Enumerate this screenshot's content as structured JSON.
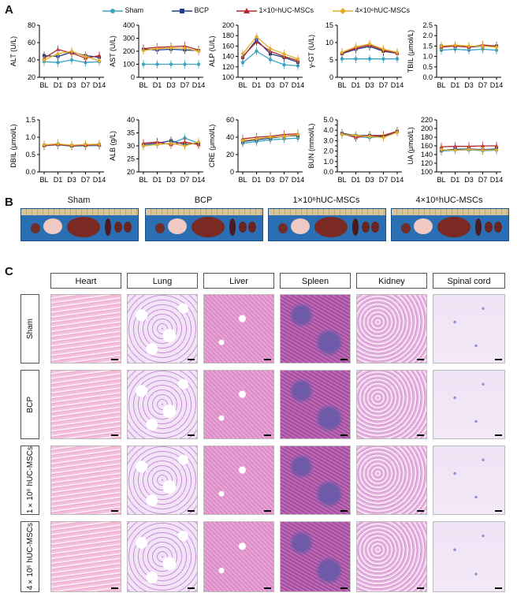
{
  "panels": {
    "a": "A",
    "b": "B",
    "c": "C"
  },
  "legend": [
    {
      "label": "Sham",
      "color": "#3aa6c4",
      "marker": "circle"
    },
    {
      "label": "BCP",
      "color": "#1f3f88",
      "marker": "square"
    },
    {
      "label": "1×10⁶hUC-MSCs",
      "color": "#b3282d",
      "marker": "triangle"
    },
    {
      "label": "4×10⁶hUC-MSCs",
      "color": "#e3ad2b",
      "marker": "diamond"
    }
  ],
  "chart_data": [
    {
      "type": "line",
      "ylabel": "ALT (U/L)",
      "ylim": [
        20,
        80
      ],
      "yticks": [
        "20",
        "40",
        "60",
        "80"
      ],
      "categories": [
        "BL",
        "D1",
        "D3",
        "D7",
        "D14"
      ],
      "series": [
        {
          "name": "Sham",
          "values": [
            38,
            37,
            40,
            37,
            38
          ]
        },
        {
          "name": "BCP",
          "values": [
            45,
            44,
            49,
            45,
            43
          ]
        },
        {
          "name": "1×10⁶hUC-MSCs",
          "values": [
            42,
            52,
            48,
            42,
            45
          ]
        },
        {
          "name": "4×10⁶hUC-MSCs",
          "values": [
            40,
            47,
            50,
            44,
            39
          ]
        }
      ]
    },
    {
      "type": "line",
      "ylabel": "AST (U/L)",
      "ylim": [
        0,
        400
      ],
      "yticks": [
        "0",
        "100",
        "200",
        "300",
        "400"
      ],
      "categories": [
        "BL",
        "D1",
        "D3",
        "D7",
        "D14"
      ],
      "series": [
        {
          "name": "Sham",
          "values": [
            100,
            100,
            100,
            100,
            100
          ]
        },
        {
          "name": "BCP",
          "values": [
            215,
            210,
            215,
            210,
            205
          ]
        },
        {
          "name": "1×10⁶hUC-MSCs",
          "values": [
            220,
            230,
            235,
            240,
            210
          ]
        },
        {
          "name": "4×10⁶hUC-MSCs",
          "values": [
            205,
            220,
            225,
            225,
            200
          ]
        }
      ]
    },
    {
      "type": "line",
      "ylabel": "ALP (U/L)",
      "ylim": [
        100,
        200
      ],
      "yticks": [
        "100",
        "120",
        "140",
        "160",
        "180",
        "200"
      ],
      "categories": [
        "BL",
        "D1",
        "D3",
        "D7",
        "D14"
      ],
      "series": [
        {
          "name": "Sham",
          "values": [
            128,
            150,
            134,
            124,
            122
          ]
        },
        {
          "name": "BCP",
          "values": [
            138,
            172,
            145,
            138,
            129
          ]
        },
        {
          "name": "1×10⁶hUC-MSCs",
          "values": [
            140,
            168,
            150,
            140,
            132
          ]
        },
        {
          "name": "4×10⁶hUC-MSCs",
          "values": [
            145,
            178,
            155,
            145,
            135
          ]
        }
      ]
    },
    {
      "type": "line",
      "ylabel": "γ-GT (U/L)",
      "ylim": [
        0,
        15
      ],
      "yticks": [
        "0",
        "5",
        "10",
        "15"
      ],
      "categories": [
        "BL",
        "D1",
        "D3",
        "D7",
        "D14"
      ],
      "series": [
        {
          "name": "Sham",
          "values": [
            5.3,
            5.3,
            5.3,
            5.3,
            5.3
          ]
        },
        {
          "name": "BCP",
          "values": [
            6.8,
            8.1,
            8.9,
            7.5,
            6.9
          ]
        },
        {
          "name": "1×10⁶hUC-MSCs",
          "values": [
            7.0,
            8.4,
            9.3,
            7.8,
            7.0
          ]
        },
        {
          "name": "4×10⁶hUC-MSCs",
          "values": [
            7.2,
            8.8,
            9.6,
            8.1,
            7.2
          ]
        }
      ]
    },
    {
      "type": "line",
      "ylabel": "TBIL (μmol/L)",
      "ylim": [
        0,
        2.5
      ],
      "yticks": [
        "0.0",
        "0.5",
        "1.0",
        "1.5",
        "2.0",
        "2.5"
      ],
      "categories": [
        "BL",
        "D1",
        "D3",
        "D7",
        "D14"
      ],
      "series": [
        {
          "name": "Sham",
          "values": [
            1.3,
            1.35,
            1.3,
            1.35,
            1.3
          ]
        },
        {
          "name": "BCP",
          "values": [
            1.5,
            1.5,
            1.45,
            1.5,
            1.5
          ]
        },
        {
          "name": "1×10⁶hUC-MSCs",
          "values": [
            1.45,
            1.5,
            1.45,
            1.55,
            1.5
          ]
        },
        {
          "name": "4×10⁶hUC-MSCs",
          "values": [
            1.5,
            1.55,
            1.5,
            1.5,
            1.45
          ]
        }
      ]
    },
    {
      "type": "line",
      "ylabel": "DBIL (μmol/L)",
      "ylim": [
        0,
        1.5
      ],
      "yticks": [
        "0.0",
        "0.5",
        "1.0",
        "1.5"
      ],
      "categories": [
        "BL",
        "D1",
        "D3",
        "D7",
        "D14"
      ],
      "series": [
        {
          "name": "Sham",
          "values": [
            0.75,
            0.78,
            0.74,
            0.75,
            0.76
          ]
        },
        {
          "name": "BCP",
          "values": [
            0.77,
            0.8,
            0.76,
            0.78,
            0.79
          ]
        },
        {
          "name": "1×10⁶hUC-MSCs",
          "values": [
            0.76,
            0.79,
            0.75,
            0.77,
            0.78
          ]
        },
        {
          "name": "4×10⁶hUC-MSCs",
          "values": [
            0.78,
            0.81,
            0.77,
            0.79,
            0.8
          ]
        }
      ]
    },
    {
      "type": "line",
      "ylabel": "ALB (g/L)",
      "ylim": [
        20,
        40
      ],
      "yticks": [
        "20",
        "25",
        "30",
        "35",
        "40"
      ],
      "categories": [
        "BL",
        "D1",
        "D3",
        "D7",
        "D14"
      ],
      "series": [
        {
          "name": "Sham",
          "values": [
            30,
            30.5,
            31,
            33,
            31
          ]
        },
        {
          "name": "BCP",
          "values": [
            30.5,
            31,
            32,
            30.5,
            31
          ]
        },
        {
          "name": "1×10⁶hUC-MSCs",
          "values": [
            31,
            31.5,
            30.5,
            31.5,
            30.5
          ]
        },
        {
          "name": "4×10⁶hUC-MSCs",
          "values": [
            30,
            30.5,
            31,
            30,
            31.5
          ]
        }
      ]
    },
    {
      "type": "line",
      "ylabel": "CRE (μmol/L)",
      "ylim": [
        0,
        60
      ],
      "yticks": [
        "0",
        "20",
        "40",
        "60"
      ],
      "categories": [
        "BL",
        "D1",
        "D3",
        "D7",
        "D14"
      ],
      "series": [
        {
          "name": "Sham",
          "values": [
            33,
            35,
            37,
            38,
            39
          ]
        },
        {
          "name": "BCP",
          "values": [
            35,
            37,
            39,
            41,
            42
          ]
        },
        {
          "name": "1×10⁶hUC-MSCs",
          "values": [
            38,
            40,
            41,
            43,
            44
          ]
        },
        {
          "name": "4×10⁶hUC-MSCs",
          "values": [
            36,
            38,
            40,
            41,
            43
          ]
        }
      ]
    },
    {
      "type": "line",
      "ylabel": "BUN (mmol/L)",
      "ylim": [
        0,
        5
      ],
      "yticks": [
        "0.0",
        "0.5",
        "1.0",
        "1.5",
        "2.0",
        "2.5",
        "3.0",
        "3.5",
        "4.0",
        "4.5",
        "5.0"
      ],
      "categories": [
        "BL",
        "D1",
        "D3",
        "D7",
        "D14"
      ],
      "series": [
        {
          "name": "Sham",
          "values": [
            3.6,
            3.4,
            3.3,
            3.4,
            3.8
          ]
        },
        {
          "name": "BCP",
          "values": [
            3.7,
            3.5,
            3.5,
            3.4,
            3.9
          ]
        },
        {
          "name": "1×10⁶hUC-MSCs",
          "values": [
            3.7,
            3.3,
            3.5,
            3.5,
            3.9
          ]
        },
        {
          "name": "4×10⁶hUC-MSCs",
          "values": [
            3.6,
            3.5,
            3.4,
            3.3,
            3.8
          ]
        }
      ]
    },
    {
      "type": "line",
      "ylabel": "UA (μmol/L)",
      "ylim": [
        100,
        220
      ],
      "yticks": [
        "100",
        "120",
        "140",
        "160",
        "180",
        "200",
        "220"
      ],
      "categories": [
        "BL",
        "D1",
        "D3",
        "D7",
        "D14"
      ],
      "series": [
        {
          "name": "Sham",
          "values": [
            148,
            150,
            151,
            149,
            150
          ]
        },
        {
          "name": "BCP",
          "values": [
            150,
            152,
            153,
            151,
            153
          ]
        },
        {
          "name": "1×10⁶hUC-MSCs",
          "values": [
            158,
            159,
            159,
            160,
            160
          ]
        },
        {
          "name": "4×10⁶hUC-MSCs",
          "values": [
            151,
            150,
            152,
            150,
            151
          ]
        }
      ]
    }
  ],
  "photos": {
    "labels": [
      "Sham",
      "BCP",
      "1×10⁶hUC-MSCs",
      "4×10⁶hUC-MSCs"
    ]
  },
  "histology": {
    "columns": [
      "Heart",
      "Lung",
      "Liver",
      "Spleen",
      "Kidney",
      "Spinal cord"
    ],
    "rows": [
      "Sham",
      "BCP",
      "1×10⁶ hUC-MSCs",
      "4×10⁶ hUC-MSCs"
    ]
  }
}
